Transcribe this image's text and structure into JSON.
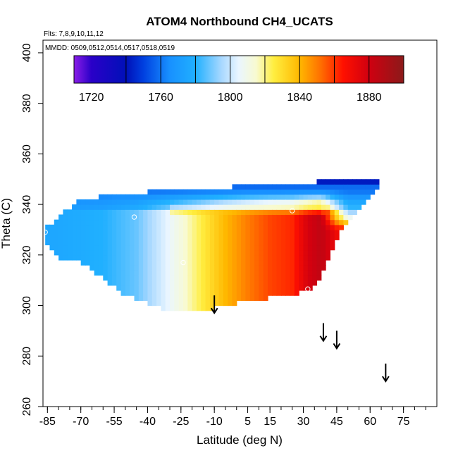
{
  "chart_data": {
    "type": "heatmap",
    "title": "ATOM4 Northbound CH4_UCATS",
    "flights_label": "Flts: 7,8,9,10,11,12",
    "dates_label": "MMDD: 0509,0512,0514,0517,0518,0519",
    "xlabel": "Latitude (deg N)",
    "ylabel": "Theta (C)",
    "xlim": [
      -87,
      90
    ],
    "ylim": [
      260,
      405
    ],
    "x_ticks": [
      -85,
      -70,
      -55,
      -40,
      -25,
      -10,
      5,
      15,
      30,
      45,
      60,
      75
    ],
    "x_tick_labels": [
      "-85",
      "-70",
      "-55",
      "-40",
      "-25",
      "-10",
      "5",
      "15",
      "30",
      "45",
      "60",
      "75"
    ],
    "x_minor_step": 5,
    "y_ticks": [
      260,
      280,
      300,
      320,
      340,
      360,
      380,
      400
    ],
    "y_tick_labels": [
      "260",
      "280",
      "300",
      "320",
      "340",
      "360",
      "380",
      "400"
    ],
    "colorbar": {
      "min": 1710,
      "max": 1900,
      "ticks": [
        1720,
        1760,
        1800,
        1840,
        1880
      ],
      "tick_labels": [
        "1720",
        "1760",
        "1800",
        "1840",
        "1880"
      ],
      "boundaries": [
        1740,
        1760,
        1780,
        1800,
        1820,
        1840,
        1860,
        1880
      ],
      "stops": [
        [
          1710,
          "#8b1ee8"
        ],
        [
          1720,
          "#2a00c8"
        ],
        [
          1740,
          "#0010b8"
        ],
        [
          1750,
          "#0040e0"
        ],
        [
          1765,
          "#1890ff"
        ],
        [
          1780,
          "#20b0ff"
        ],
        [
          1795,
          "#a8d8ff"
        ],
        [
          1805,
          "#eaf6ff"
        ],
        [
          1815,
          "#f8fad0"
        ],
        [
          1825,
          "#ffee40"
        ],
        [
          1840,
          "#ffb800"
        ],
        [
          1852,
          "#ff7000"
        ],
        [
          1865,
          "#ff1000"
        ],
        [
          1880,
          "#d00010"
        ],
        [
          1900,
          "#8b1a1a"
        ]
      ]
    },
    "field": {
      "cell_lat": 2,
      "cell_theta": 2,
      "regions": [
        {
          "name": "main",
          "lat_range": [
            -86,
            64
          ],
          "bottom": [
            [
              -86,
              326
            ],
            [
              -80,
              320
            ],
            [
              -70,
              318
            ],
            [
              -60,
              312
            ],
            [
              -50,
              305
            ],
            [
              -35,
              300
            ],
            [
              -28,
              298
            ],
            [
              -15,
              299
            ],
            [
              0,
              302
            ],
            [
              15,
              304
            ],
            [
              24,
              305
            ],
            [
              34,
              308
            ],
            [
              38,
              312
            ],
            [
              42,
              320
            ],
            [
              46,
              330
            ],
            [
              52,
              337
            ],
            [
              60,
              344
            ],
            [
              64,
              348
            ]
          ],
          "top": [
            [
              -86,
              330
            ],
            [
              -80,
              334
            ],
            [
              -70,
              341
            ],
            [
              -55,
              343
            ],
            [
              -45,
              343
            ],
            [
              -35,
              345
            ],
            [
              -10,
              345
            ],
            [
              5,
              347
            ],
            [
              30,
              347
            ],
            [
              50,
              350
            ],
            [
              64,
              350
            ]
          ]
        }
      ],
      "profile": [
        [
          -86,
          1775
        ],
        [
          -60,
          1780
        ],
        [
          -45,
          1788
        ],
        [
          -35,
          1800
        ],
        [
          -25,
          1812
        ],
        [
          -15,
          1826
        ],
        [
          -5,
          1840
        ],
        [
          5,
          1850
        ],
        [
          15,
          1858
        ],
        [
          25,
          1862
        ],
        [
          32,
          1878
        ],
        [
          38,
          1885
        ],
        [
          45,
          1870
        ]
      ],
      "high_theta_cap": [
        [
          338,
          0.3
        ],
        [
          342,
          0.6
        ],
        [
          344,
          0.85
        ],
        [
          346,
          1.0
        ]
      ],
      "cap_value": 1758,
      "top_band_value": 1742,
      "top_band_theta": 347,
      "top_band_lat_start": 30,
      "ridge": {
        "theta": 338,
        "lat_range": [
          -30,
          40
        ],
        "value": 1835
      },
      "blue_wedge": {
        "lat_start": 38,
        "theta_range": [
          330,
          345
        ],
        "value": 1795
      }
    },
    "sample_points": [
      {
        "lat": -86,
        "theta": 329
      },
      {
        "lat": -46,
        "theta": 335
      },
      {
        "lat": -24,
        "theta": 317
      },
      {
        "lat": 25,
        "theta": 337.5
      },
      {
        "lat": 32,
        "theta": 306.5
      },
      {
        "lat": 62.5,
        "theta": 351.5
      }
    ],
    "arrows": [
      {
        "lat": -10,
        "theta_top": 304,
        "theta_bottom": 297
      },
      {
        "lat": 39,
        "theta_top": 293,
        "theta_bottom": 286
      },
      {
        "lat": 45,
        "theta_top": 290,
        "theta_bottom": 283
      },
      {
        "lat": 67,
        "theta_top": 277,
        "theta_bottom": 270
      }
    ]
  }
}
